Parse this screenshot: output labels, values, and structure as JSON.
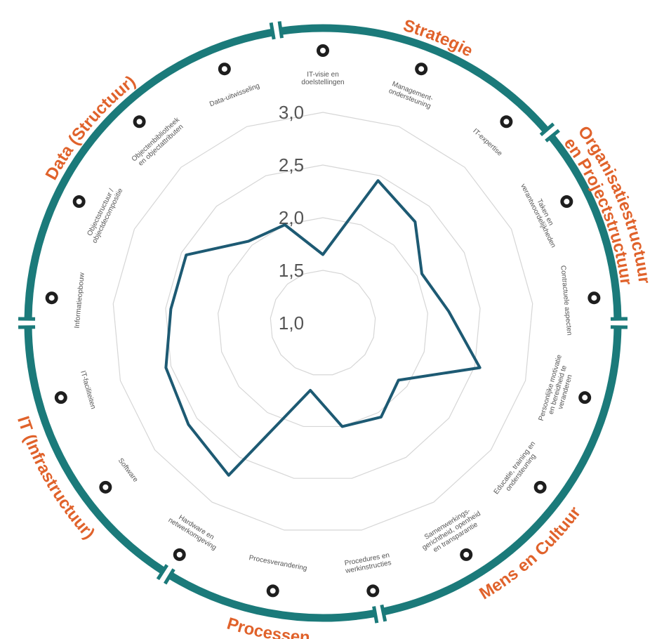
{
  "chart_data": {
    "type": "radar",
    "categories": [
      [
        "IT-visie en",
        "doelstellingen"
      ],
      [
        "Management-",
        "ondersteuning"
      ],
      [
        "IT-expertise"
      ],
      [
        "Taken en",
        "verantwoordelijkheden"
      ],
      [
        "Contractuele aspecten"
      ],
      [
        "Persoonlijke motivatie",
        "en bereidheid te",
        "veranderen"
      ],
      [
        "Educatie, training en",
        "ondersteuning"
      ],
      [
        "Samenwerkings-",
        "gerichtheid, openheid",
        "en transparantie"
      ],
      [
        "Procedures en",
        "werkinstructies"
      ],
      [
        "Procesverandering"
      ],
      [
        "Hardware en",
        "netwerkomgeving"
      ],
      [
        "Software"
      ],
      [
        "IT-faciliteiten"
      ],
      [
        "Informatieopbouw"
      ],
      [
        "Objectstructuur /",
        "objectdecompositie"
      ],
      [
        "Objectenbibliotheek",
        "en objectattributen"
      ],
      [
        "Data-uitwisseling"
      ]
    ],
    "values": [
      1.65,
      2.45,
      2.3,
      2.05,
      2.2,
      2.55,
      1.9,
      2.05,
      2.0,
      1.65,
      2.7,
      2.6,
      2.55,
      2.45,
      2.45,
      2.05,
      2.0
    ],
    "color": "#1d5a73",
    "ylim": [
      1,
      3
    ],
    "yticks": [
      {
        "value": 1,
        "label": "1,0"
      },
      {
        "value": 1.5,
        "label": "1,5"
      },
      {
        "value": 2,
        "label": "2,0"
      },
      {
        "value": 2.5,
        "label": "2,5"
      },
      {
        "value": 3,
        "label": "3,0"
      }
    ],
    "grid": true,
    "groups": [
      {
        "lines": [
          "Strategie"
        ]
      },
      {
        "lines": [
          "Organisatiestructuur",
          "en Projectstructuur"
        ]
      },
      {
        "lines": [
          "Mens en Cultuur"
        ]
      },
      {
        "lines": [
          "Processen"
        ]
      },
      {
        "lines": [
          "IT (Infrastructuur)"
        ]
      },
      {
        "lines": [
          "Data (Structuur)"
        ]
      }
    ]
  }
}
